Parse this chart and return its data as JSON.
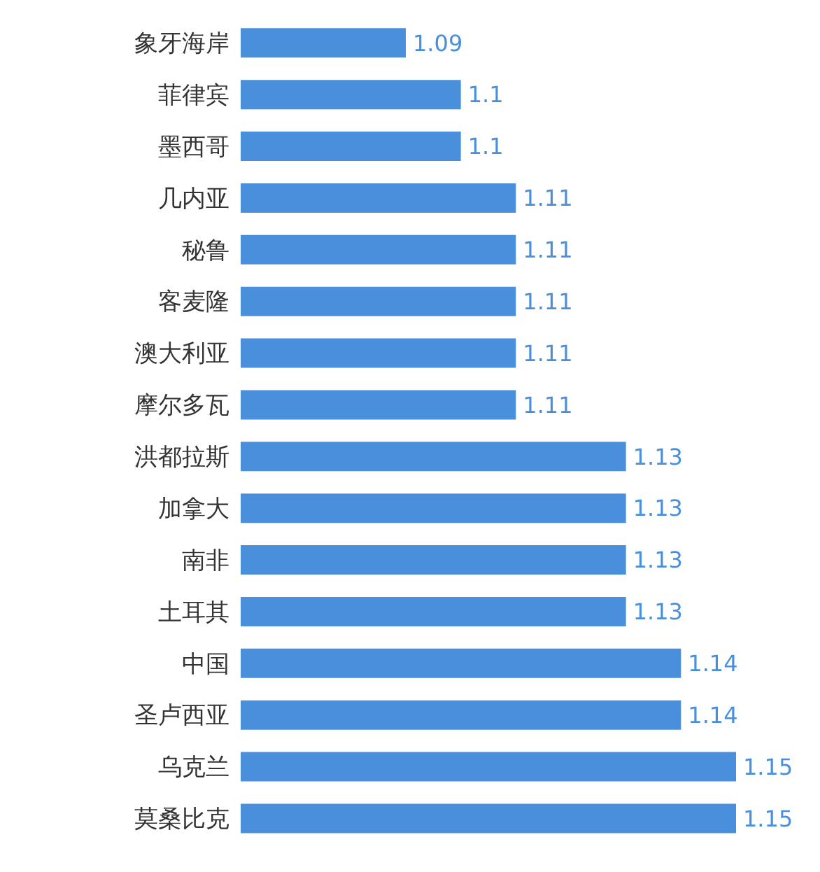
{
  "chart_data": {
    "type": "bar",
    "orientation": "horizontal",
    "categories": [
      "象牙海岸",
      "菲律宾",
      "墨西哥",
      "几内亚",
      "秘鲁",
      "客麦隆",
      "澳大利亚",
      "摩尔多瓦",
      "洪都拉斯",
      "加拿大",
      "南非",
      "土耳其",
      "中国",
      "圣卢西亚",
      "乌克兰",
      "莫桑比克"
    ],
    "values": [
      1.09,
      1.1,
      1.1,
      1.11,
      1.11,
      1.11,
      1.11,
      1.11,
      1.13,
      1.13,
      1.13,
      1.13,
      1.14,
      1.14,
      1.15,
      1.15
    ],
    "color": "#4a8fdb",
    "xlim": [
      1.06,
      1.15
    ],
    "data_labels": true,
    "tick_labels": "y"
  }
}
